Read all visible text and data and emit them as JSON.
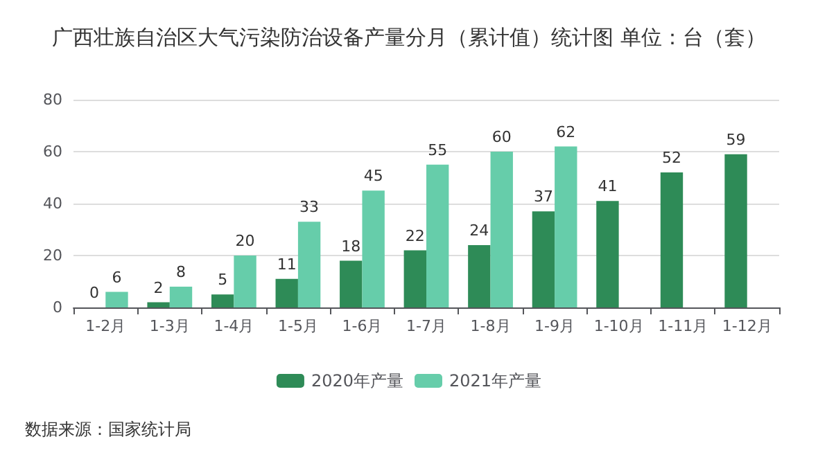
{
  "chart_data": {
    "type": "bar",
    "title": "广西壮族自治区大气污染防治设备产量分月（累计值）统计图 单位：台（套）",
    "categories": [
      "1-2月",
      "1-3月",
      "1-4月",
      "1-5月",
      "1-6月",
      "1-7月",
      "1-8月",
      "1-9月",
      "1-10月",
      "1-11月",
      "1-12月"
    ],
    "series": [
      {
        "name": "2020年产量",
        "color": "#2e8b57",
        "values": [
          0,
          2,
          5,
          11,
          18,
          22,
          24,
          37,
          41,
          52,
          59
        ]
      },
      {
        "name": "2021年产量",
        "color": "#66cdaa",
        "values": [
          6,
          8,
          20,
          33,
          45,
          55,
          60,
          62,
          null,
          null,
          null
        ]
      }
    ],
    "ylim": [
      0,
      80
    ],
    "yticks": [
      0,
      20,
      40,
      60,
      80
    ],
    "grid": "y",
    "legend": "bottom",
    "data_labels": true,
    "annotations": [
      "数据来源：国家统计局"
    ]
  }
}
